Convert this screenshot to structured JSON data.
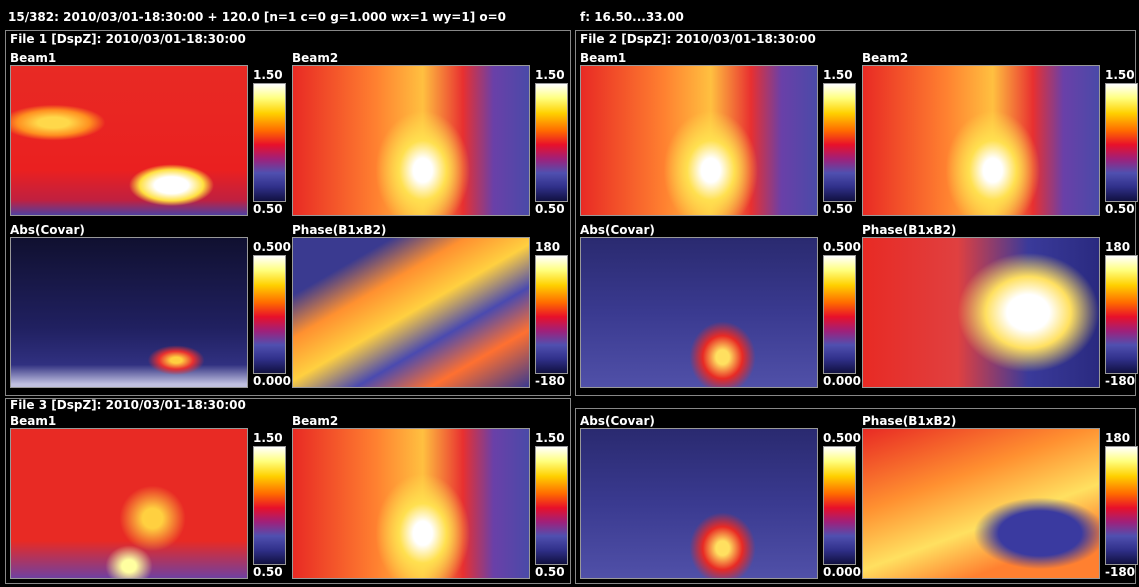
{
  "header": {
    "status": "15/382:  2010/03/01-18:30:00 + 120.0 [n=1 c=0 g=1.000 wx=1 wy=1] o=0",
    "frequency": "f: 16.50...33.00"
  },
  "files": [
    {
      "title": "File 1 [DspZ]: 2010/03/01-18:30:00",
      "panels": [
        {
          "label": "Beam1",
          "scale_max": "1.50",
          "scale_min": "0.50"
        },
        {
          "label": "Beam2",
          "scale_max": "1.50",
          "scale_min": "0.50"
        },
        {
          "label": "Abs(Covar)",
          "scale_max": "0.500",
          "scale_min": "0.000"
        },
        {
          "label": "Phase(B1xB2)",
          "scale_max": "180",
          "scale_min": "-180"
        }
      ]
    },
    {
      "title": "File 2 [DspZ]: 2010/03/01-18:30:00",
      "panels": [
        {
          "label": "Beam1",
          "scale_max": "1.50",
          "scale_min": "0.50"
        },
        {
          "label": "Beam2",
          "scale_max": "1.50",
          "scale_min": "0.50"
        },
        {
          "label": "Abs(Covar)",
          "scale_max": "0.500",
          "scale_min": "0.000"
        },
        {
          "label": "Phase(B1xB2)",
          "scale_max": "180",
          "scale_min": "-180"
        }
      ]
    },
    {
      "title": "File 3 [DspZ]: 2010/03/01-18:30:00",
      "panels": [
        {
          "label": "Beam1",
          "scale_max": "1.50",
          "scale_min": "0.50"
        },
        {
          "label": "Beam2",
          "scale_max": "1.50",
          "scale_min": "0.50"
        }
      ]
    }
  ],
  "extra_panels": [
    {
      "label": "Abs(Covar)",
      "scale_max": "0.500",
      "scale_min": "0.000"
    },
    {
      "label": "Phase(B1xB2)",
      "scale_max": "180",
      "scale_min": "-180"
    }
  ]
}
